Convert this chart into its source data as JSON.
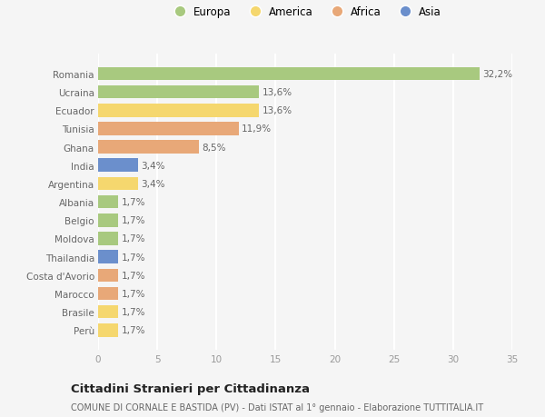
{
  "countries": [
    "Romania",
    "Ucraina",
    "Ecuador",
    "Tunisia",
    "Ghana",
    "India",
    "Argentina",
    "Albania",
    "Belgio",
    "Moldova",
    "Thailandia",
    "Costa d'Avorio",
    "Marocco",
    "Brasile",
    "Perù"
  ],
  "values": [
    32.2,
    13.6,
    13.6,
    11.9,
    8.5,
    3.4,
    3.4,
    1.7,
    1.7,
    1.7,
    1.7,
    1.7,
    1.7,
    1.7,
    1.7
  ],
  "labels": [
    "32,2%",
    "13,6%",
    "13,6%",
    "11,9%",
    "8,5%",
    "3,4%",
    "3,4%",
    "1,7%",
    "1,7%",
    "1,7%",
    "1,7%",
    "1,7%",
    "1,7%",
    "1,7%",
    "1,7%"
  ],
  "continents": [
    "Europa",
    "Europa",
    "America",
    "Africa",
    "Africa",
    "Asia",
    "America",
    "Europa",
    "Europa",
    "Europa",
    "Asia",
    "Africa",
    "Africa",
    "America",
    "America"
  ],
  "colors": {
    "Europa": "#a8c97f",
    "America": "#f5d76e",
    "Africa": "#e8a878",
    "Asia": "#6b8fcc"
  },
  "legend_order": [
    "Europa",
    "America",
    "Africa",
    "Asia"
  ],
  "title": "Cittadini Stranieri per Cittadinanza",
  "subtitle": "COMUNE DI CORNALE E BASTIDA (PV) - Dati ISTAT al 1° gennaio - Elaborazione TUTTITALIA.IT",
  "xlim": [
    0,
    35
  ],
  "xticks": [
    0,
    5,
    10,
    15,
    20,
    25,
    30,
    35
  ],
  "bg_color": "#f5f5f5",
  "grid_color": "#ffffff",
  "bar_height": 0.72
}
